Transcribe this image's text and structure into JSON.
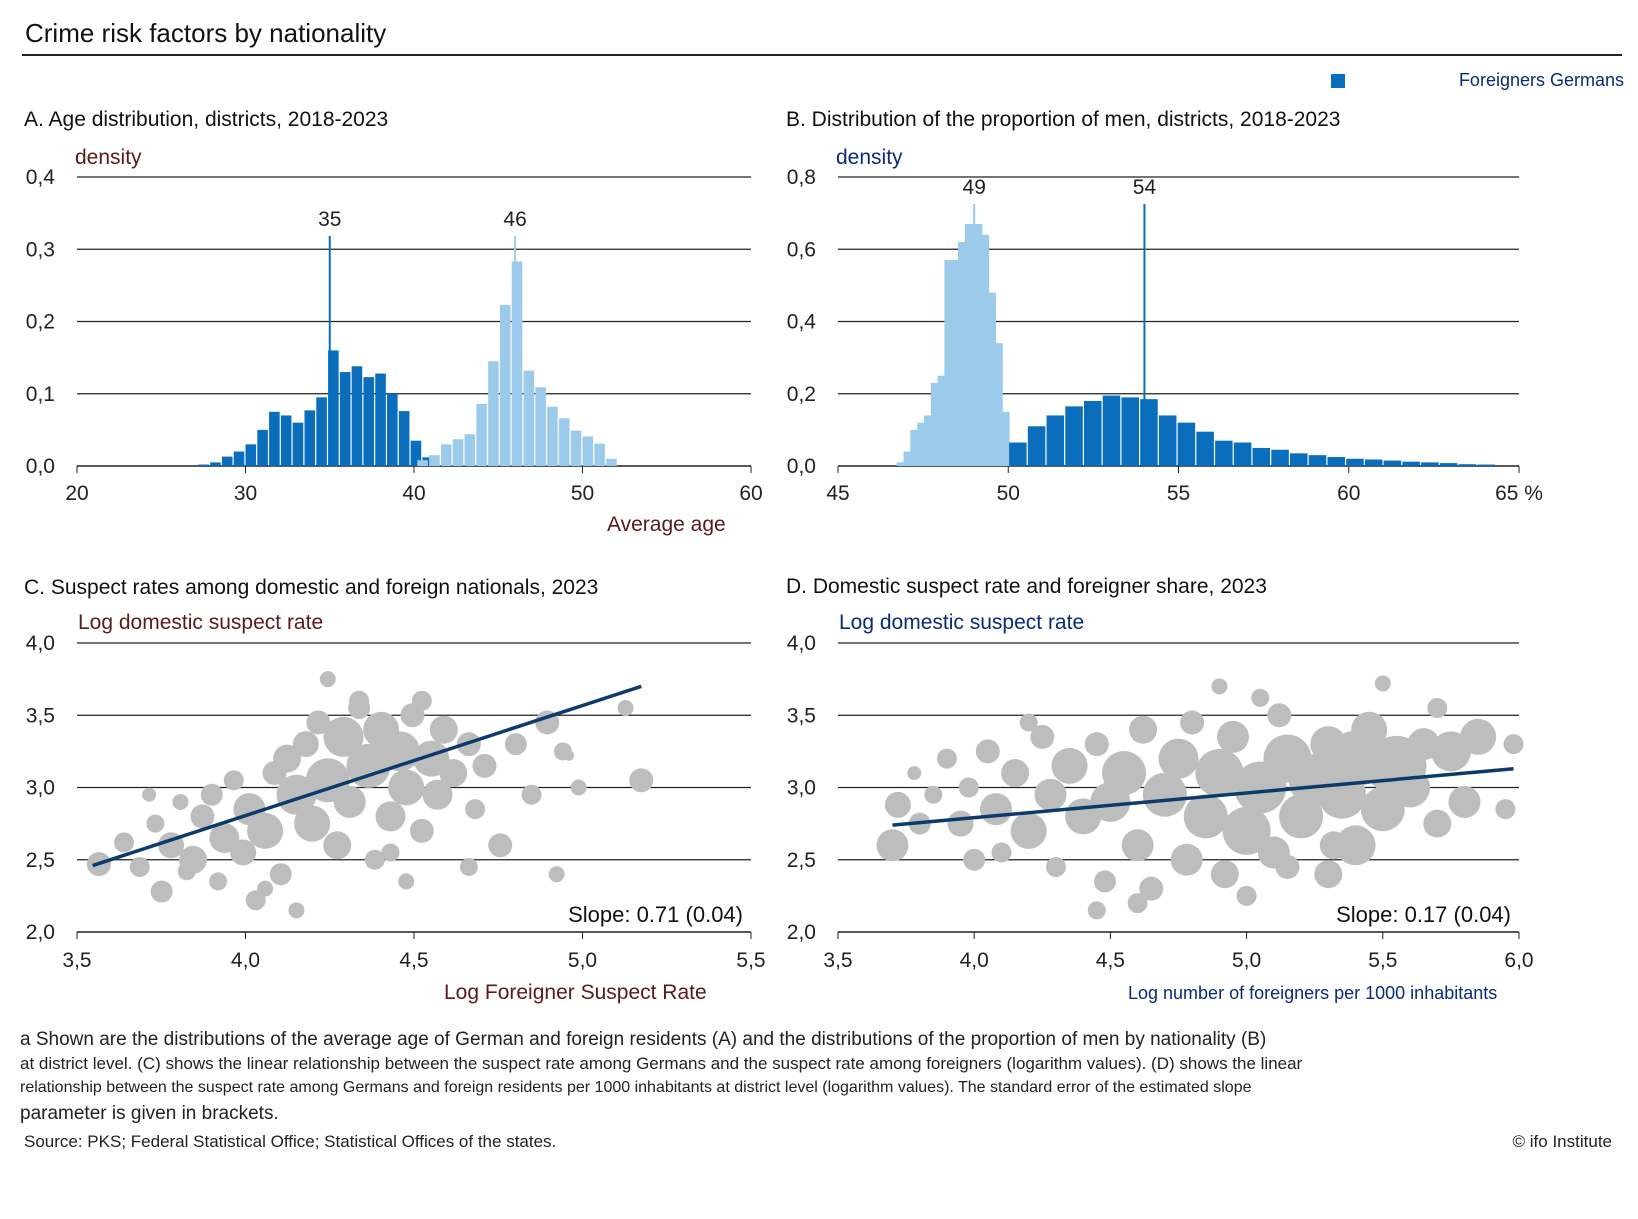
{
  "title": "Crime risk factors by nationality",
  "legend": {
    "label": "Foreigners Germans",
    "color": "#0a6ebd"
  },
  "colors": {
    "dark": "#0a6ebd",
    "light": "#9ccaea",
    "bubble": "#bdbdbd",
    "line": "#0b3a6b",
    "accent_red": "#5a1a1a",
    "accent_blue": "#0a2a7a"
  },
  "panels": {
    "a": {
      "title": "A. Age distribution, districts, 2018-2023",
      "ylabel": "density",
      "xlabel": "Average age",
      "marker_left": "35",
      "marker_right": "46"
    },
    "b": {
      "title": "B. Distribution of the proportion of men, districts, 2018-2023",
      "ylabel": "density",
      "xlabel": "",
      "marker_left": "49",
      "marker_right": "54"
    },
    "c": {
      "title": "C. Suspect rates among domestic and foreign nationals, 2023",
      "ylabel": "Log domestic suspect rate",
      "xlabel": "Log Foreigner Suspect Rate",
      "slope": "Slope: 0.71 (0.04)"
    },
    "d": {
      "title": "D. Domestic suspect rate and foreigner share, 2023",
      "ylabel": "Log domestic suspect rate",
      "xlabel": "Log number of foreigners per 1000 inhabitants",
      "slope": "Slope: 0.17 (0.04)"
    }
  },
  "chart_data": [
    {
      "type": "bar",
      "title": "A. Age distribution, districts, 2018-2023",
      "ylabel": "density",
      "xlabel": "Average age",
      "xlim": [
        20,
        60
      ],
      "ylim": [
        0,
        0.4
      ],
      "xticks": [
        "20",
        "30",
        "40",
        "50",
        "60"
      ],
      "yticks": [
        "0,0",
        "0,1",
        "0,2",
        "0,3",
        "0,4"
      ],
      "bin_width": 0.7,
      "series": [
        {
          "color": "dark",
          "x": [
            27.55,
            28.25,
            28.95,
            29.65,
            30.35,
            31.05,
            31.75,
            32.45,
            33.15,
            33.85,
            34.55,
            35.25,
            35.95,
            36.65,
            37.35,
            38.05,
            38.75,
            39.45,
            40.15,
            40.85
          ],
          "values": [
            0.002,
            0.005,
            0.013,
            0.02,
            0.03,
            0.05,
            0.075,
            0.07,
            0.06,
            0.077,
            0.095,
            0.16,
            0.13,
            0.138,
            0.123,
            0.128,
            0.1,
            0.076,
            0.035,
            0.012
          ]
        },
        {
          "color": "light",
          "x": [
            40.55,
            41.25,
            41.95,
            42.65,
            43.35,
            44.05,
            44.75,
            45.45,
            46.15,
            46.85,
            47.55,
            48.25,
            48.95,
            49.65,
            50.35,
            51.05,
            51.75
          ],
          "values": [
            0.008,
            0.015,
            0.03,
            0.037,
            0.044,
            0.086,
            0.145,
            0.223,
            0.283,
            0.132,
            0.109,
            0.082,
            0.066,
            0.049,
            0.041,
            0.031,
            0.01
          ]
        }
      ],
      "markers": [
        {
          "x": 35,
          "label": "35"
        },
        {
          "x": 46,
          "label": "46"
        }
      ]
    },
    {
      "type": "bar",
      "title": "B. Distribution of the proportion of men, districts, 2018-2023",
      "ylabel": "density",
      "xlim": [
        45,
        65
      ],
      "ylim": [
        0,
        0.8
      ],
      "xticks": [
        "45",
        "50",
        "55",
        "60",
        "65 %"
      ],
      "yticks": [
        "0,0",
        "0,2",
        "0,4",
        "0,6",
        "0,8"
      ],
      "bin_width": 0.55,
      "series": [
        {
          "color": "light",
          "x": [
            47.0,
            47.2,
            47.4,
            47.6,
            47.8,
            48.0,
            48.2,
            48.4,
            48.6,
            48.8,
            49.0,
            49.2,
            49.4,
            49.6,
            49.8
          ],
          "values": [
            0.01,
            0.04,
            0.1,
            0.12,
            0.14,
            0.23,
            0.25,
            0.57,
            0.55,
            0.62,
            0.67,
            0.64,
            0.48,
            0.34,
            0.15
          ]
        },
        {
          "color": "dark",
          "x": [
            50.3,
            50.85,
            51.4,
            51.95,
            52.5,
            53.05,
            53.6,
            54.15,
            54.7,
            55.25,
            55.8,
            56.35,
            56.9,
            57.45,
            58.0,
            58.55,
            59.1,
            59.65,
            60.2,
            60.75,
            61.3,
            61.85,
            62.4,
            62.95,
            63.5,
            64.05
          ],
          "values": [
            0.065,
            0.11,
            0.14,
            0.165,
            0.18,
            0.195,
            0.19,
            0.185,
            0.14,
            0.12,
            0.095,
            0.07,
            0.065,
            0.05,
            0.045,
            0.035,
            0.03,
            0.025,
            0.02,
            0.018,
            0.015,
            0.012,
            0.01,
            0.008,
            0.005,
            0.004
          ]
        }
      ],
      "markers": [
        {
          "x": 49,
          "label": "49"
        },
        {
          "x": 54,
          "label": "54"
        }
      ]
    },
    {
      "type": "scatter",
      "title": "C. Suspect rates among domestic and foreign nationals, 2023",
      "ylabel": "Log domestic suspect rate",
      "xlabel": "Log Foreigner Suspect Rate",
      "xlim": [
        3.35,
        5.5
      ],
      "ylim": [
        2.0,
        4.0
      ],
      "xticks": [
        "3,5",
        "4,0",
        "4,5",
        "5,0",
        "5,5"
      ],
      "yticks": [
        "2,0",
        "2,5",
        "3,0",
        "3,5",
        "4,0"
      ],
      "fit": {
        "x": [
          3.4,
          5.15
        ],
        "y": [
          2.46,
          3.7
        ]
      },
      "points": [
        [
          3.42,
          2.47,
          12
        ],
        [
          3.5,
          2.62,
          10
        ],
        [
          3.55,
          2.45,
          10
        ],
        [
          3.6,
          2.75,
          9
        ],
        [
          3.62,
          2.28,
          11
        ],
        [
          3.65,
          2.6,
          13
        ],
        [
          3.68,
          2.9,
          8
        ],
        [
          3.72,
          2.5,
          14
        ],
        [
          3.75,
          2.8,
          12
        ],
        [
          3.78,
          2.95,
          11
        ],
        [
          3.8,
          2.35,
          9
        ],
        [
          3.82,
          2.65,
          15
        ],
        [
          3.85,
          3.05,
          10
        ],
        [
          3.88,
          2.55,
          13
        ],
        [
          3.9,
          2.85,
          16
        ],
        [
          3.92,
          2.22,
          10
        ],
        [
          3.95,
          2.7,
          18
        ],
        [
          3.98,
          3.1,
          12
        ],
        [
          4.0,
          2.4,
          11
        ],
        [
          4.02,
          3.2,
          14
        ],
        [
          4.05,
          2.95,
          20
        ],
        [
          4.08,
          3.3,
          13
        ],
        [
          4.1,
          2.75,
          18
        ],
        [
          4.12,
          3.45,
          12
        ],
        [
          4.15,
          3.05,
          22
        ],
        [
          4.18,
          2.6,
          14
        ],
        [
          4.2,
          3.35,
          20
        ],
        [
          4.22,
          2.9,
          16
        ],
        [
          4.25,
          3.55,
          11
        ],
        [
          4.28,
          3.15,
          22
        ],
        [
          4.3,
          2.5,
          10
        ],
        [
          4.32,
          3.4,
          18
        ],
        [
          4.35,
          2.8,
          15
        ],
        [
          4.38,
          3.25,
          20
        ],
        [
          4.4,
          3.0,
          18
        ],
        [
          4.42,
          3.5,
          12
        ],
        [
          4.45,
          2.7,
          12
        ],
        [
          4.48,
          3.2,
          18
        ],
        [
          4.5,
          2.95,
          15
        ],
        [
          4.52,
          3.4,
          14
        ],
        [
          4.55,
          3.1,
          14
        ],
        [
          4.6,
          3.3,
          12
        ],
        [
          4.62,
          2.85,
          10
        ],
        [
          4.65,
          3.15,
          12
        ],
        [
          4.7,
          2.6,
          12
        ],
        [
          4.75,
          3.3,
          11
        ],
        [
          4.8,
          2.95,
          10
        ],
        [
          4.85,
          3.45,
          12
        ],
        [
          4.88,
          2.4,
          8
        ],
        [
          4.9,
          3.25,
          9
        ],
        [
          4.95,
          3.0,
          8
        ],
        [
          5.1,
          3.55,
          8
        ],
        [
          5.15,
          3.05,
          12
        ],
        [
          3.7,
          2.42,
          9
        ],
        [
          3.95,
          2.3,
          8
        ],
        [
          4.05,
          2.15,
          8
        ],
        [
          4.25,
          3.6,
          10
        ],
        [
          4.35,
          2.55,
          9
        ],
        [
          4.45,
          3.6,
          10
        ],
        [
          4.6,
          2.45,
          9
        ],
        [
          4.15,
          3.75,
          8
        ],
        [
          4.4,
          2.35,
          8
        ],
        [
          3.58,
          2.95,
          7
        ],
        [
          4.92,
          3.22,
          5
        ]
      ]
    },
    {
      "type": "scatter",
      "title": "D. Domestic suspect rate and foreigner share, 2023",
      "ylabel": "Log domestic suspect rate",
      "xlabel": "Log number of foreigners per 1000 inhabitants",
      "xlim": [
        3.5,
        6.0
      ],
      "ylim": [
        2.0,
        4.0
      ],
      "xticks": [
        "3,5",
        "4,0",
        "4,5",
        "5,0",
        "5,5",
        "6,0"
      ],
      "yticks": [
        "2,0",
        "2,5",
        "3,0",
        "3,5",
        "4,0"
      ],
      "fit": {
        "x": [
          3.7,
          5.98
        ],
        "y": [
          2.74,
          3.13
        ]
      },
      "points": [
        [
          3.7,
          2.6,
          16
        ],
        [
          3.72,
          2.88,
          13
        ],
        [
          3.8,
          2.75,
          11
        ],
        [
          3.85,
          2.95,
          9
        ],
        [
          3.9,
          3.2,
          10
        ],
        [
          3.95,
          2.75,
          13
        ],
        [
          3.98,
          3.0,
          10
        ],
        [
          4.0,
          2.5,
          11
        ],
        [
          4.05,
          3.25,
          12
        ],
        [
          4.08,
          2.85,
          16
        ],
        [
          4.1,
          2.55,
          10
        ],
        [
          4.15,
          3.1,
          14
        ],
        [
          4.2,
          2.7,
          18
        ],
        [
          4.25,
          3.35,
          12
        ],
        [
          4.28,
          2.95,
          16
        ],
        [
          4.3,
          2.45,
          10
        ],
        [
          4.35,
          3.15,
          18
        ],
        [
          4.4,
          2.8,
          18
        ],
        [
          4.45,
          3.3,
          12
        ],
        [
          4.48,
          2.35,
          11
        ],
        [
          4.5,
          2.9,
          20
        ],
        [
          4.55,
          3.1,
          22
        ],
        [
          4.6,
          2.6,
          16
        ],
        [
          4.62,
          3.4,
          14
        ],
        [
          4.65,
          2.3,
          12
        ],
        [
          4.7,
          2.95,
          22
        ],
        [
          4.75,
          3.2,
          20
        ],
        [
          4.78,
          2.5,
          16
        ],
        [
          4.8,
          3.45,
          12
        ],
        [
          4.85,
          2.8,
          22
        ],
        [
          4.9,
          3.1,
          24
        ],
        [
          4.92,
          2.4,
          14
        ],
        [
          4.95,
          3.35,
          16
        ],
        [
          5.0,
          2.7,
          24
        ],
        [
          5.05,
          3.0,
          26
        ],
        [
          5.1,
          2.55,
          16
        ],
        [
          5.12,
          3.5,
          12
        ],
        [
          5.15,
          3.2,
          24
        ],
        [
          5.2,
          2.8,
          22
        ],
        [
          5.25,
          3.05,
          26
        ],
        [
          5.3,
          3.3,
          18
        ],
        [
          5.32,
          2.6,
          14
        ],
        [
          5.35,
          2.95,
          24
        ],
        [
          5.4,
          3.2,
          28
        ],
        [
          5.45,
          3.4,
          18
        ],
        [
          5.5,
          2.85,
          22
        ],
        [
          5.55,
          3.15,
          30
        ],
        [
          5.6,
          3.0,
          20
        ],
        [
          5.65,
          3.3,
          16
        ],
        [
          5.7,
          2.75,
          14
        ],
        [
          5.75,
          3.25,
          20
        ],
        [
          5.8,
          2.9,
          16
        ],
        [
          5.85,
          3.35,
          18
        ],
        [
          5.4,
          2.6,
          20
        ],
        [
          5.3,
          2.4,
          14
        ],
        [
          4.45,
          2.15,
          9
        ],
        [
          5.0,
          2.25,
          10
        ],
        [
          4.2,
          3.45,
          9
        ],
        [
          5.05,
          3.62,
          9
        ],
        [
          5.5,
          3.72,
          8
        ],
        [
          5.98,
          3.3,
          10
        ],
        [
          4.6,
          2.2,
          10
        ],
        [
          5.15,
          2.45,
          12
        ],
        [
          5.95,
          2.85,
          10
        ],
        [
          5.7,
          3.55,
          10
        ],
        [
          4.9,
          3.7,
          8
        ],
        [
          3.78,
          3.1,
          7
        ]
      ]
    }
  ],
  "notes": [
    "a Shown are the distributions of the average age of German and foreign residents (A) and the distributions of the proportion of men by nationality (B)",
    " at district level. (C) shows the linear relationship between the suspect rate among Germans and the suspect rate among foreigners (logarithm values). (D) shows the linear",
    "relationship between the suspect rate among Germans and foreign residents per 1000 inhabitants at district level (logarithm values). The standard error of the estimated slope",
    "parameter is given in brackets."
  ],
  "source": "Source: PKS; Federal Statistical Office; Statistical Offices of the states.",
  "copyright": "©  ifo Institute"
}
